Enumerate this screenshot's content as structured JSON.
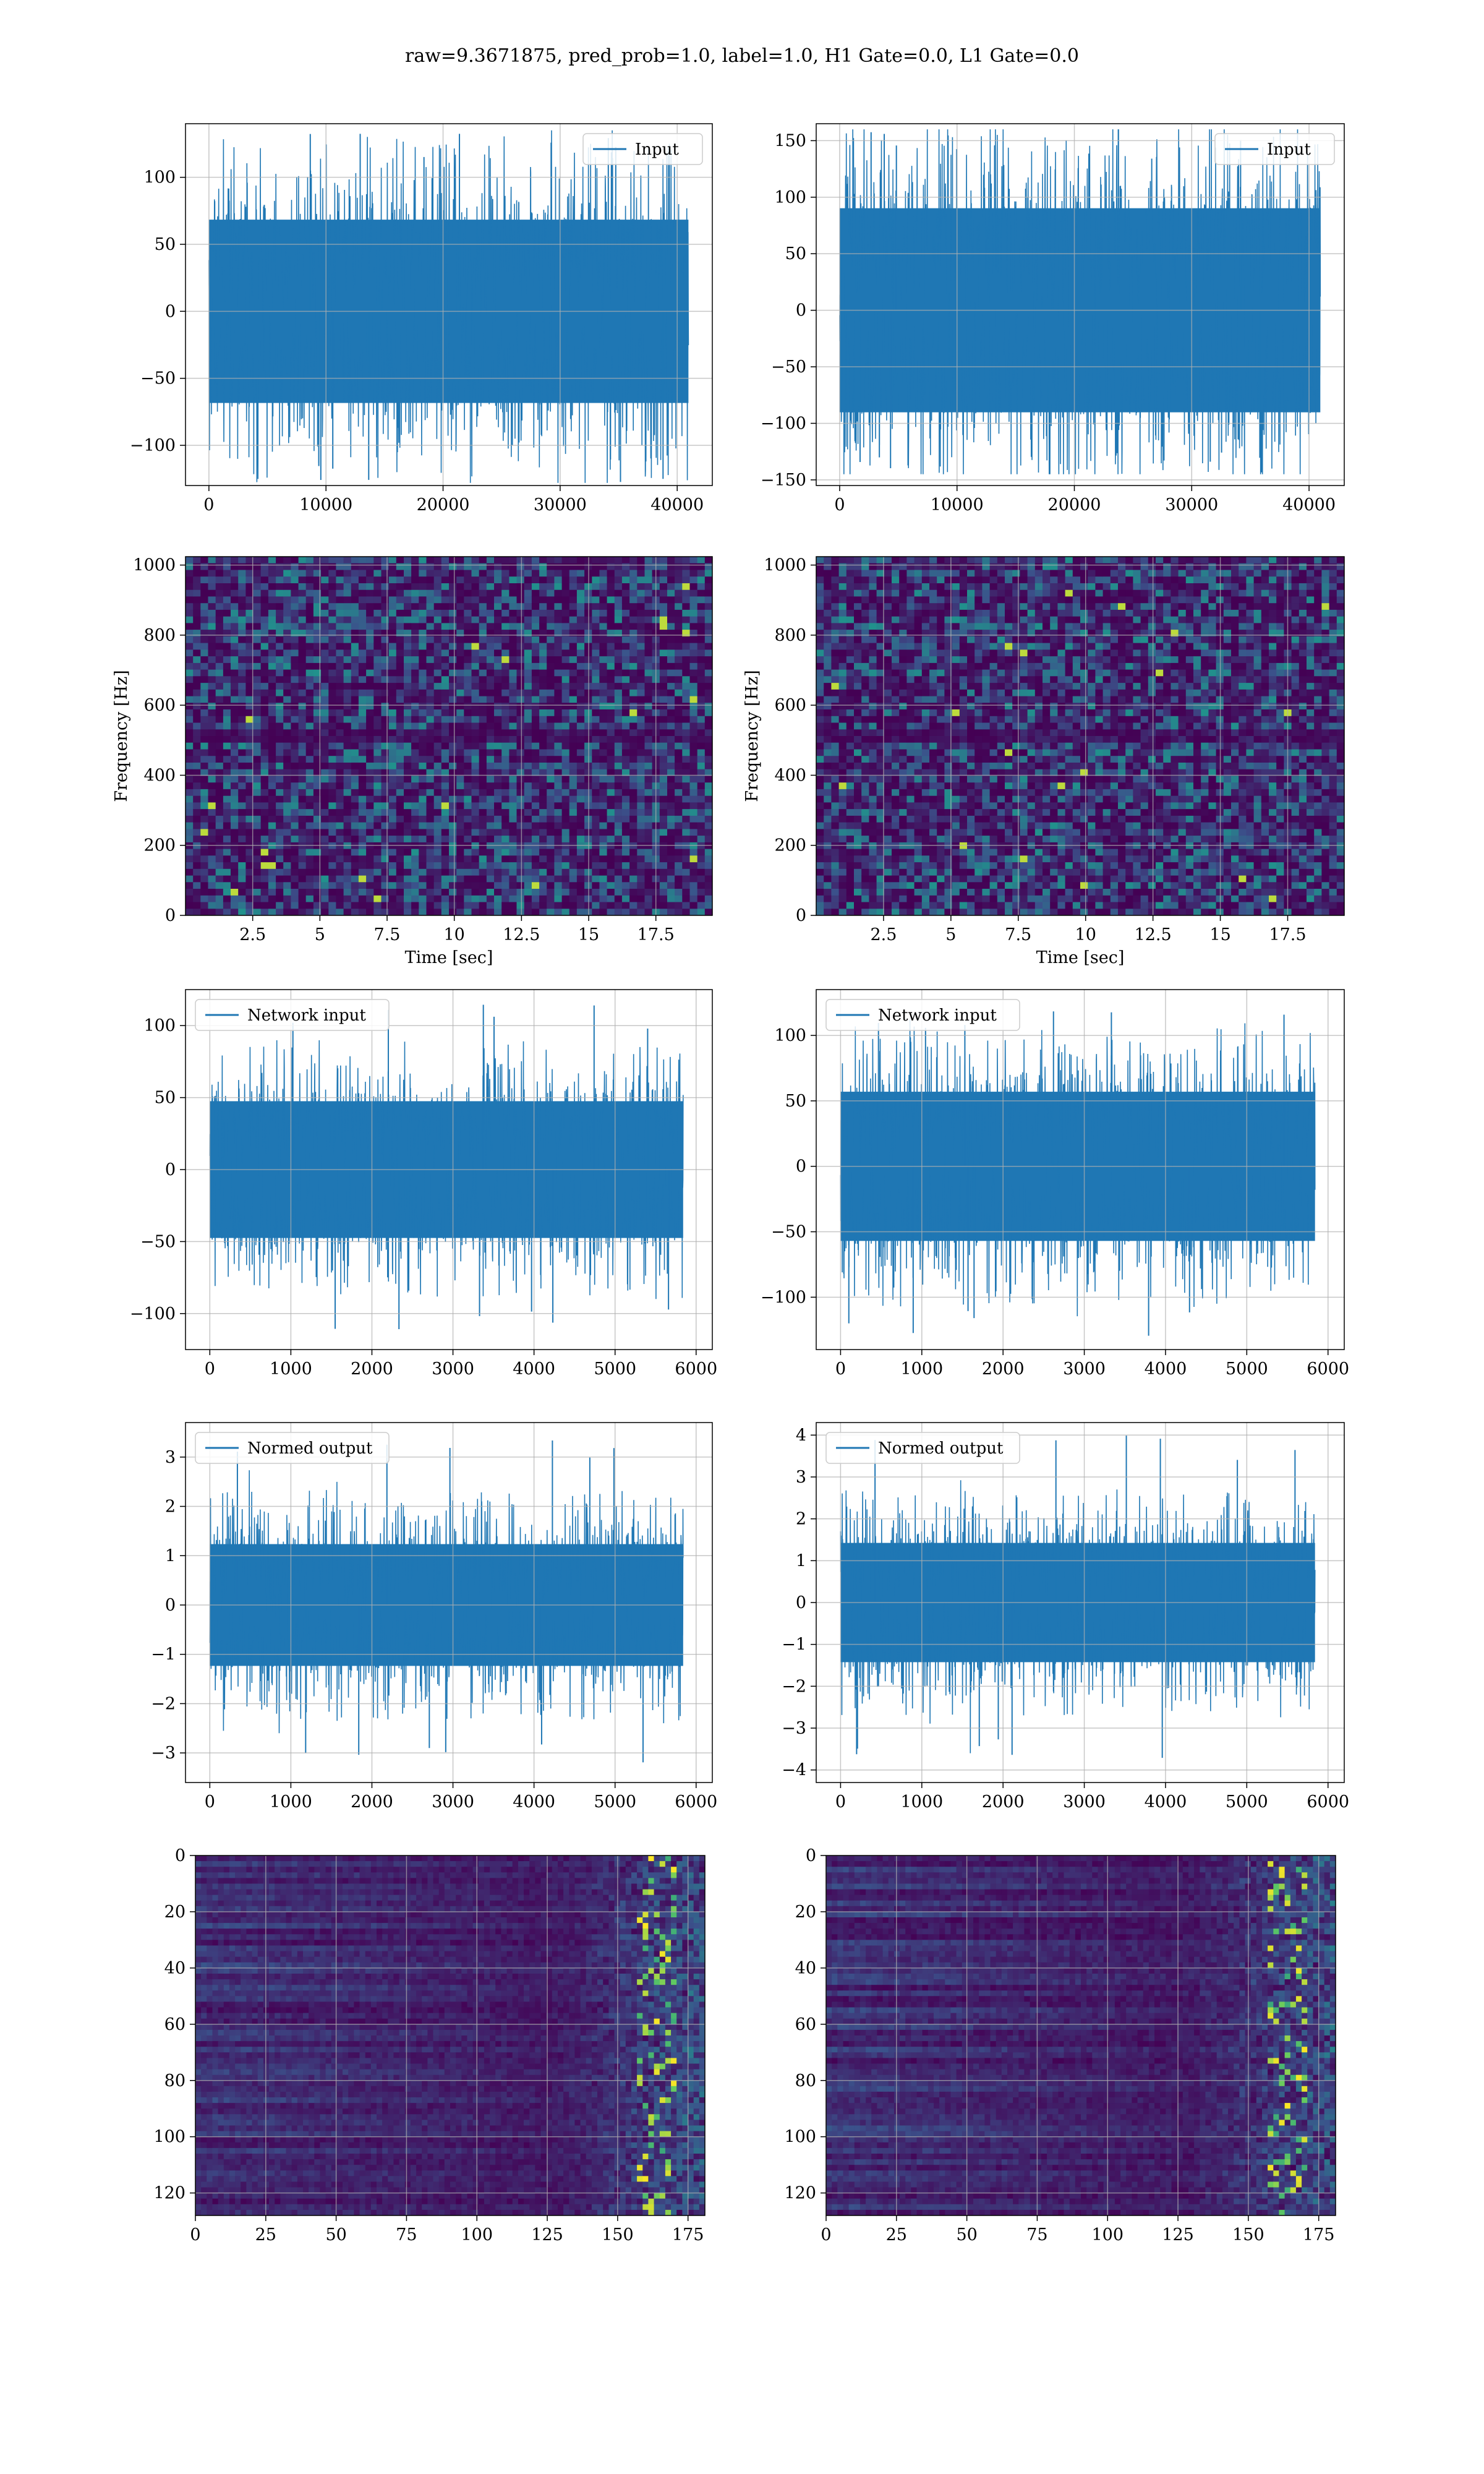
{
  "figure": {
    "title": "raw=9.3671875, pred_prob=1.0, label=1.0, H1 Gate=0.0, L1 Gate=0.0"
  },
  "colors": {
    "line": "#1f77b4",
    "grid": "#b0b0b0",
    "viridis_low": "#440154",
    "viridis_mid": "#21918c",
    "viridis_high": "#fde725"
  },
  "chart_data": [
    {
      "id": "r1c1",
      "type": "line",
      "legend": "Input",
      "legend_loc": "upper-right",
      "xlim": [
        -2000,
        43000
      ],
      "ylim": [
        -130,
        140
      ],
      "xticks": [
        0,
        10000,
        20000,
        30000,
        40000
      ],
      "yticks": [
        -100,
        -50,
        0,
        50,
        100
      ],
      "xlabel": "",
      "ylabel": "",
      "signal": {
        "n": 40960,
        "x_start": 0,
        "x_end": 40960,
        "body_amp": 72,
        "peak_amp": 135,
        "min_amp": -128
      }
    },
    {
      "id": "r1c2",
      "type": "line",
      "legend": "Input",
      "legend_loc": "upper-right",
      "xlim": [
        -2000,
        43000
      ],
      "ylim": [
        -155,
        165
      ],
      "xticks": [
        0,
        10000,
        20000,
        30000,
        40000
      ],
      "yticks": [
        -150,
        -100,
        -50,
        0,
        50,
        100,
        150
      ],
      "xlabel": "",
      "ylabel": "",
      "signal": {
        "n": 40960,
        "x_start": 0,
        "x_end": 40960,
        "body_amp": 95,
        "peak_amp": 160,
        "min_amp": -145
      }
    },
    {
      "id": "r2c1",
      "type": "heatmap",
      "colormap": "viridis",
      "xlim": [
        0,
        19.6
      ],
      "ylim": [
        0,
        1024
      ],
      "xticks": [
        2.5,
        5.0,
        7.5,
        10.0,
        12.5,
        15.0,
        17.5
      ],
      "yticks": [
        0,
        200,
        400,
        600,
        800,
        1000
      ],
      "xlabel": "Time [sec]",
      "ylabel": "Frequency [Hz]"
    },
    {
      "id": "r2c2",
      "type": "heatmap",
      "colormap": "viridis",
      "xlim": [
        0,
        19.6
      ],
      "ylim": [
        0,
        1024
      ],
      "xticks": [
        2.5,
        5.0,
        7.5,
        10.0,
        12.5,
        15.0,
        17.5
      ],
      "yticks": [
        0,
        200,
        400,
        600,
        800,
        1000
      ],
      "xlabel": "Time [sec]",
      "ylabel": "Frequency [Hz]"
    },
    {
      "id": "r3c1",
      "type": "line",
      "legend": "Network input",
      "legend_loc": "upper-left",
      "xlim": [
        -300,
        6200
      ],
      "ylim": [
        -125,
        125
      ],
      "xticks": [
        0,
        1000,
        2000,
        3000,
        4000,
        5000,
        6000
      ],
      "yticks": [
        -100,
        -50,
        0,
        50,
        100
      ],
      "xlabel": "",
      "ylabel": "",
      "signal": {
        "n": 5840,
        "x_start": 0,
        "x_end": 5840,
        "body_amp": 50,
        "peak_amp": 115,
        "min_amp": -112
      }
    },
    {
      "id": "r3c2",
      "type": "line",
      "legend": "Network input",
      "legend_loc": "upper-left",
      "xlim": [
        -300,
        6200
      ],
      "ylim": [
        -140,
        135
      ],
      "xticks": [
        0,
        1000,
        2000,
        3000,
        4000,
        5000,
        6000
      ],
      "yticks": [
        -100,
        -50,
        0,
        50,
        100
      ],
      "xlabel": "",
      "ylabel": "",
      "signal": {
        "n": 5840,
        "x_start": 0,
        "x_end": 5840,
        "body_amp": 60,
        "peak_amp": 120,
        "min_amp": -130
      }
    },
    {
      "id": "r4c1",
      "type": "line",
      "legend": "Normed output",
      "legend_loc": "upper-left",
      "xlim": [
        -300,
        6200
      ],
      "ylim": [
        -3.6,
        3.7
      ],
      "xticks": [
        0,
        1000,
        2000,
        3000,
        4000,
        5000,
        6000
      ],
      "yticks": [
        -3,
        -2,
        -1,
        0,
        1,
        2,
        3
      ],
      "xlabel": "",
      "ylabel": "",
      "signal": {
        "n": 5840,
        "x_start": 0,
        "x_end": 5840,
        "body_amp": 1.3,
        "peak_amp": 3.4,
        "min_amp": -3.3
      }
    },
    {
      "id": "r4c2",
      "type": "line",
      "legend": "Normed output",
      "legend_loc": "upper-left",
      "xlim": [
        -300,
        6200
      ],
      "ylim": [
        -4.3,
        4.3
      ],
      "xticks": [
        0,
        1000,
        2000,
        3000,
        4000,
        5000,
        6000
      ],
      "yticks": [
        -4,
        -3,
        -2,
        -1,
        0,
        1,
        2,
        3,
        4
      ],
      "xlabel": "",
      "ylabel": "",
      "signal": {
        "n": 5840,
        "x_start": 0,
        "x_end": 5840,
        "body_amp": 1.5,
        "peak_amp": 4.0,
        "min_amp": -3.8
      }
    },
    {
      "id": "r5c1",
      "type": "heatmap",
      "colormap": "viridis",
      "origin": "upper",
      "xlim": [
        0,
        181
      ],
      "ylim": [
        128,
        0
      ],
      "xticks": [
        0,
        25,
        50,
        75,
        100,
        125,
        150,
        175
      ],
      "yticks": [
        0,
        20,
        40,
        60,
        80,
        100,
        120
      ],
      "xlabel": "",
      "ylabel": ""
    },
    {
      "id": "r5c2",
      "type": "heatmap",
      "colormap": "viridis",
      "origin": "upper",
      "xlim": [
        0,
        181
      ],
      "ylim": [
        128,
        0
      ],
      "xticks": [
        0,
        25,
        50,
        75,
        100,
        125,
        150,
        175
      ],
      "yticks": [
        0,
        20,
        40,
        60,
        80,
        100,
        120
      ],
      "xlabel": "",
      "ylabel": ""
    }
  ]
}
